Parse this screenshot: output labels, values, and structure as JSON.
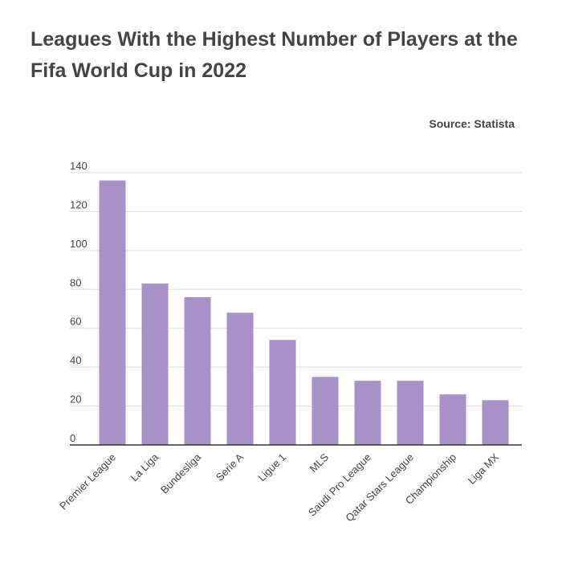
{
  "title": "Leagues With the Highest Number of Players at the Fifa World Cup in 2022",
  "source": "Source: Statista",
  "colors": {
    "bar": "#a891c6",
    "grid": "#dddddd",
    "axis": "#333333",
    "text": "#444444"
  },
  "chart_data": {
    "type": "bar",
    "title": "Leagues With the Highest Number of Players at the Fifa World Cup in 2022",
    "xlabel": "",
    "ylabel": "",
    "categories": [
      "Premier League",
      "La Liga",
      "Bundesliga",
      "Serie A",
      "Ligue 1",
      "MLS",
      "Saudi Pro League",
      "Qatar Stars League",
      "Championship",
      "Liga MX"
    ],
    "values": [
      136,
      83,
      76,
      68,
      54,
      35,
      33,
      33,
      26,
      23
    ],
    "ylim": [
      0,
      140
    ],
    "yticks": [
      0,
      20,
      40,
      60,
      80,
      100,
      120,
      140
    ],
    "grid": true,
    "legend": "none"
  }
}
